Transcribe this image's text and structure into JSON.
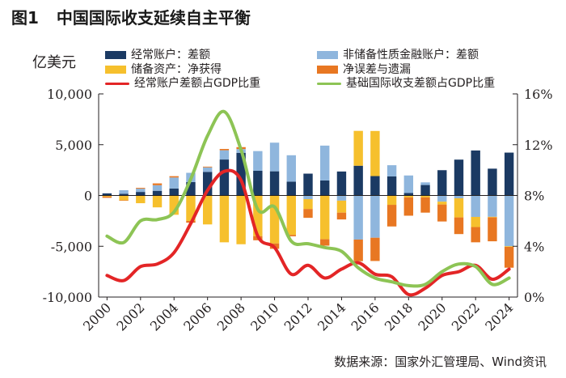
{
  "figure": {
    "label": "图1",
    "title": "中国国际收支延续自主平衡",
    "unit": "亿美元",
    "source": "数据来源：国家外汇管理局、Wind资讯"
  },
  "chart_data": {
    "type": "bar",
    "x": [
      2000,
      2001,
      2002,
      2003,
      2004,
      2005,
      2006,
      2007,
      2008,
      2009,
      2010,
      2011,
      2012,
      2013,
      2014,
      2015,
      2016,
      2017,
      2018,
      2019,
      2020,
      2021,
      2022,
      2023,
      2024
    ],
    "xtick_labels": [
      "2000",
      "2002",
      "2004",
      "2006",
      "2008",
      "2010",
      "2012",
      "2014",
      "2016",
      "2018",
      "2020",
      "2022",
      "2024"
    ],
    "left_axis": {
      "ylim": [
        -10000,
        10000
      ],
      "ticks": [
        "10,000",
        "5,000",
        "0",
        "-5,000",
        "-10,000"
      ],
      "tick_values": [
        10000,
        5000,
        0,
        -5000,
        -10000
      ]
    },
    "right_axis": {
      "ylim": [
        0,
        16
      ],
      "ticks": [
        "16%",
        "12%",
        "8%",
        "4%",
        "0%"
      ],
      "tick_values": [
        16,
        12,
        8,
        4,
        0
      ]
    },
    "colors": {
      "current_account": "#1b3a63",
      "financial_account": "#8fb6dd",
      "reserve_assets": "#f6c02d",
      "errors_omissions": "#e87722",
      "ca_ratio": "#e32526",
      "basic_ratio": "#8dc455"
    },
    "series": [
      {
        "key": "current_account",
        "name": "经常账户：差额",
        "kind": "bar",
        "values": [
          200,
          170,
          350,
          460,
          690,
          1320,
          2320,
          3540,
          4200,
          2430,
          2380,
          1360,
          2150,
          1480,
          2360,
          2930,
          1910,
          1880,
          240,
          1030,
          2490,
          3530,
          4430,
          2640,
          4220
        ]
      },
      {
        "key": "financial_account",
        "name": "非储备性质金融账户：差额",
        "kind": "bar",
        "values": [
          20,
          350,
          320,
          550,
          1080,
          910,
          450,
          910,
          370,
          1940,
          2820,
          2600,
          -360,
          3430,
          -510,
          -4340,
          -4160,
          1100,
          1730,
          260,
          -610,
          -280,
          -2110,
          -2100,
          -5000
        ]
      },
      {
        "key": "reserve_assets",
        "name": "储备资产：净获得",
        "kind": "bar",
        "values": [
          -110,
          -470,
          -760,
          -1170,
          -1900,
          -2510,
          -2850,
          -4610,
          -4800,
          -4000,
          -4720,
          -3880,
          -970,
          -4310,
          -1180,
          3430,
          4440,
          -920,
          -190,
          -190,
          -280,
          -1880,
          -1000,
          -60,
          -60
        ]
      },
      {
        "key": "errors_omissions",
        "name": "净误差与遗漏",
        "kind": "bar",
        "values": [
          -120,
          -50,
          80,
          180,
          130,
          -170,
          70,
          130,
          190,
          -410,
          -530,
          -140,
          -870,
          -630,
          -670,
          -2130,
          -2290,
          -2130,
          -1800,
          -1500,
          -1670,
          -1640,
          -1500,
          -2350,
          -2050
        ]
      },
      {
        "key": "ca_ratio",
        "name": "经常账户差额占GDP比重",
        "kind": "line",
        "axis": "right",
        "values": [
          1.7,
          1.3,
          2.4,
          2.6,
          3.5,
          5.8,
          8.4,
          9.9,
          9.2,
          4.8,
          3.9,
          1.8,
          2.5,
          1.5,
          2.2,
          2.7,
          1.8,
          1.6,
          0.2,
          0.7,
          1.7,
          2.0,
          2.5,
          1.4,
          2.2
        ]
      },
      {
        "key": "basic_ratio",
        "name": "基础国际收支差额占GDP比重",
        "kind": "line",
        "axis": "right",
        "values": [
          4.8,
          4.3,
          6.0,
          6.1,
          6.7,
          9.3,
          12.7,
          14.6,
          11.6,
          6.9,
          7.1,
          4.4,
          4.2,
          3.9,
          3.6,
          2.3,
          1.5,
          1.2,
          0.9,
          1.0,
          2.0,
          2.6,
          2.4,
          1.0,
          1.5
        ]
      }
    ]
  }
}
